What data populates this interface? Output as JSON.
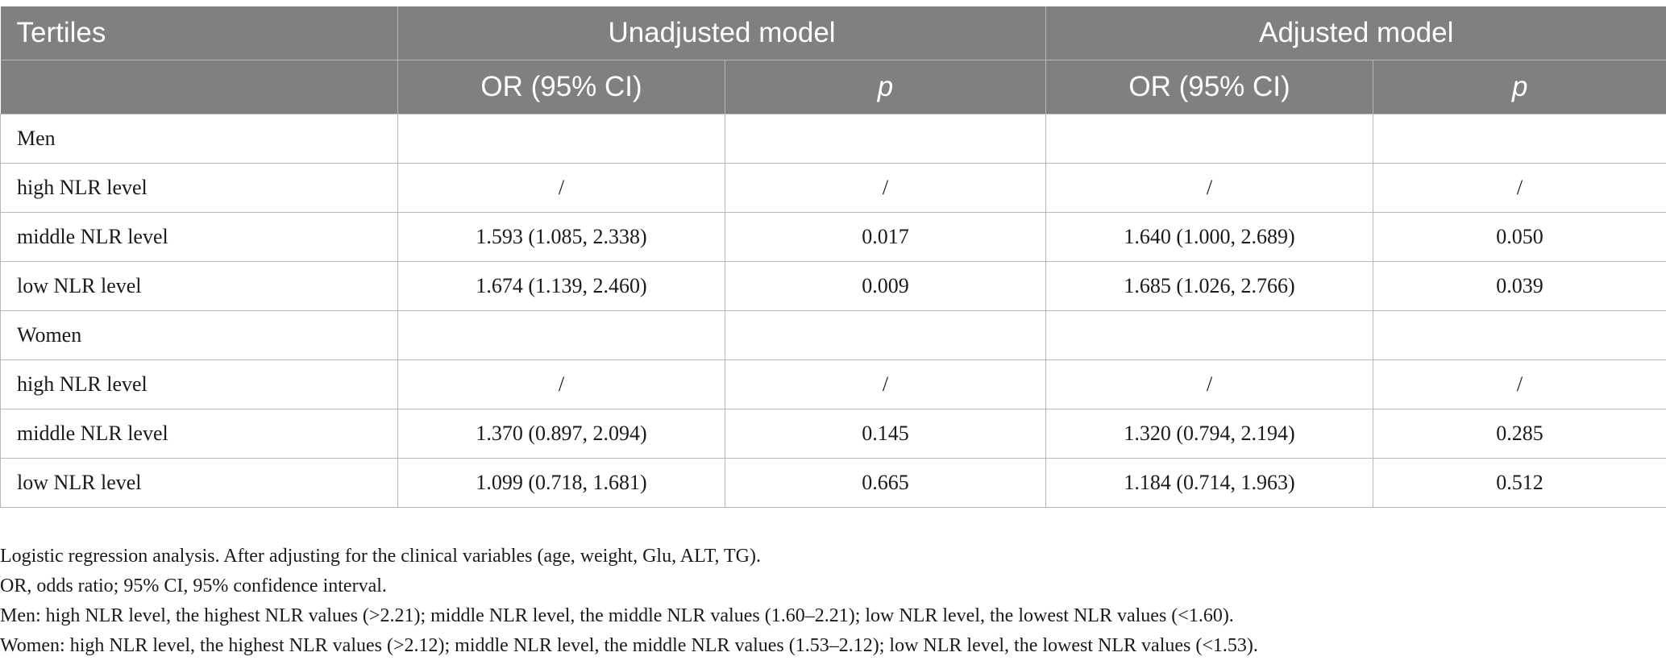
{
  "table": {
    "header_row1": {
      "tertiles": "Tertiles",
      "unadjusted": "Unadjusted model",
      "adjusted": "Adjusted model"
    },
    "header_row2": {
      "or_unadjusted": "OR (95% CI)",
      "p_unadjusted": "p",
      "or_adjusted": "OR (95% CI)",
      "p_adjusted": "p"
    },
    "rows": [
      {
        "label": "Men",
        "or_u": "",
        "p_u": "",
        "or_a": "",
        "p_a": ""
      },
      {
        "label": "high NLR level",
        "or_u": "/",
        "p_u": "/",
        "or_a": "/",
        "p_a": "/"
      },
      {
        "label": "middle NLR level",
        "or_u": "1.593 (1.085, 2.338)",
        "p_u": "0.017",
        "or_a": "1.640 (1.000, 2.689)",
        "p_a": "0.050"
      },
      {
        "label": "low NLR level",
        "or_u": "1.674 (1.139, 2.460)",
        "p_u": "0.009",
        "or_a": "1.685 (1.026, 2.766)",
        "p_a": "0.039"
      },
      {
        "label": "Women",
        "or_u": "",
        "p_u": "",
        "or_a": "",
        "p_a": ""
      },
      {
        "label": "high NLR level",
        "or_u": "/",
        "p_u": "/",
        "or_a": "/",
        "p_a": "/"
      },
      {
        "label": "middle NLR level",
        "or_u": "1.370 (0.897, 2.094)",
        "p_u": "0.145",
        "or_a": "1.320 (0.794, 2.194)",
        "p_a": "0.285"
      },
      {
        "label": "low NLR level",
        "or_u": "1.099 (0.718, 1.681)",
        "p_u": "0.665",
        "or_a": "1.184 (0.714, 1.963)",
        "p_a": "0.512"
      }
    ]
  },
  "notes": [
    "Logistic regression analysis. After adjusting for the clinical variables (age, weight, Glu, ALT, TG).",
    "OR, odds ratio; 95% CI, 95% confidence interval.",
    "Men: high NLR level, the highest NLR values (>2.21); middle NLR level, the middle NLR values (1.60–2.21); low NLR level, the lowest NLR values (<1.60).",
    "Women: high NLR level, the highest NLR values (>2.12); middle NLR level, the middle NLR values (1.53–2.12); low NLR level, the lowest NLR values (<1.53)."
  ],
  "colors": {
    "header_bg": "#7f8180",
    "header_text": "#ffffff",
    "grid_line": "#b8b8b8"
  }
}
